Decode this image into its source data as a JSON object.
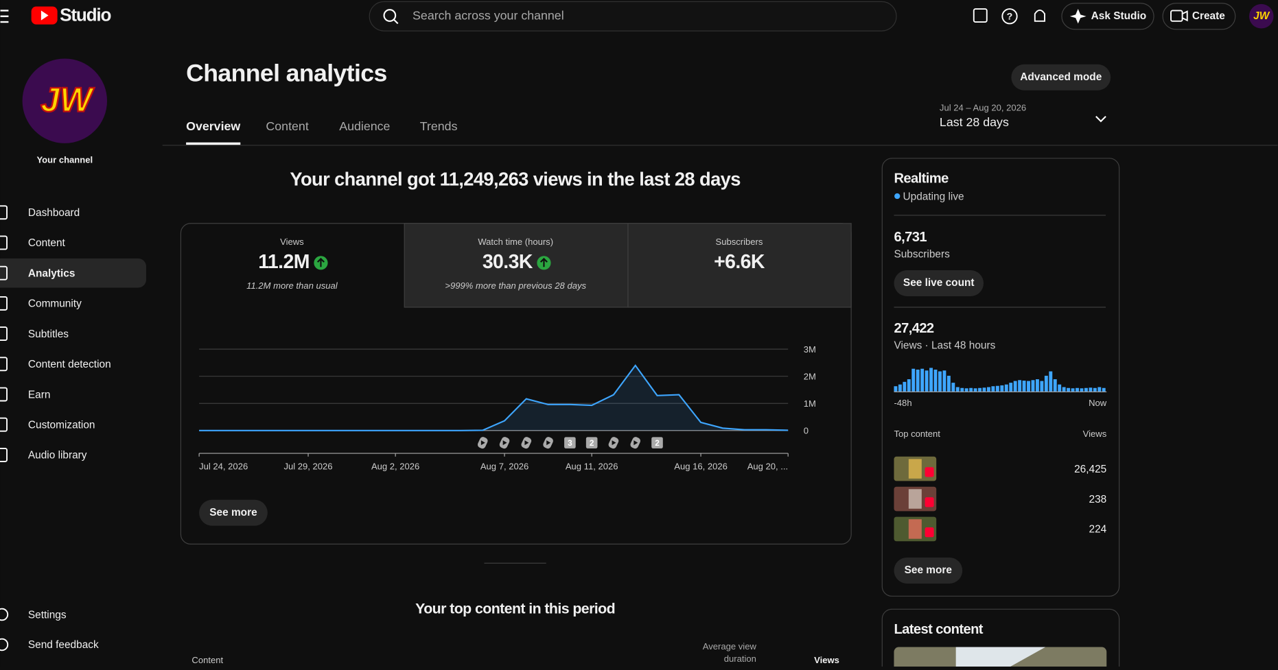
{
  "header": {
    "logo_text": "Studio",
    "search_placeholder": "Search across your channel",
    "ask_studio": "Ask Studio",
    "create": "Create",
    "avatar": "JW"
  },
  "sidebar": {
    "avatar": "JW",
    "channel_label": "Your channel",
    "nav": [
      "Dashboard",
      "Content",
      "Analytics",
      "Community",
      "Subtitles",
      "Content detection",
      "Earn",
      "Customization",
      "Audio library"
    ],
    "active": 2,
    "bottom": [
      "Settings",
      "Send feedback"
    ]
  },
  "main": {
    "title": "Channel analytics",
    "advanced_mode": "Advanced mode",
    "tabs": [
      "Overview",
      "Content",
      "Audience",
      "Trends"
    ],
    "active_tab": 0,
    "date_range": "Jul 24 – Aug 20, 2026",
    "period": "Last 28 days",
    "headline": "Your channel got 11,249,263 views in the last 28 days",
    "metrics": [
      {
        "label": "Views",
        "value": "11.2M",
        "note": "11.2M more than usual",
        "up": true
      },
      {
        "label": "Watch time (hours)",
        "value": "30.3K",
        "note": ">999% more than previous 28 days",
        "up": true
      },
      {
        "label": "Subscribers",
        "value": "+6.6K"
      }
    ],
    "see_more": "See more",
    "top_content_title": "Your top content in this period",
    "table_headers": [
      "Content",
      "Average view duration",
      "Views"
    ]
  },
  "chart_data": [
    {
      "type": "line",
      "color": "#3ea6ff",
      "categories": [
        "Jul 24, 2026",
        null,
        null,
        null,
        null,
        "Jul 29, 2026",
        null,
        null,
        null,
        "Aug 2, 2026",
        null,
        null,
        null,
        null,
        "Aug 7, 2026",
        null,
        null,
        null,
        "Aug 11, 2026",
        null,
        null,
        null,
        null,
        "Aug 16, 2026",
        null,
        null,
        null,
        "Aug 20, ..."
      ],
      "values": [
        0,
        0,
        0,
        0,
        0,
        0,
        0,
        0,
        0,
        0,
        0,
        0,
        0,
        10000,
        360000,
        1170000,
        960000,
        960000,
        930000,
        1320000,
        2400000,
        1290000,
        1320000,
        300000,
        90000,
        30000,
        30000,
        10000
      ],
      "ylim": [
        0,
        3000000
      ],
      "yticks": [
        0,
        {
          "value": 1000000,
          "label": "1M"
        },
        {
          "value": 2000000,
          "label": "2M"
        },
        {
          "value": 3000000,
          "label": "3M"
        }
      ],
      "grid": true,
      "upload_markers": [
        {
          "day": 13
        },
        {
          "day": 14
        },
        {
          "day": 15
        },
        {
          "day": 16
        },
        {
          "day": 17,
          "count": 3
        },
        {
          "day": 18,
          "count": 2
        },
        {
          "day": 19
        },
        {
          "day": 20
        },
        {
          "day": 21,
          "count": 2
        }
      ]
    },
    {
      "type": "bar",
      "color": "#3ea6ff",
      "categories": [
        "-48h",
        null,
        null,
        null,
        null,
        null,
        null,
        null,
        null,
        null,
        null,
        null,
        null,
        null,
        null,
        null,
        null,
        null,
        null,
        null,
        null,
        null,
        null,
        null,
        null,
        null,
        null,
        null,
        null,
        null,
        null,
        null,
        null,
        null,
        null,
        null,
        null,
        null,
        null,
        null,
        null,
        null,
        null,
        null,
        null,
        null,
        null,
        "Now"
      ],
      "values": [
        300,
        400,
        550,
        700,
        1300,
        1250,
        1300,
        1200,
        1350,
        1250,
        1150,
        1200,
        900,
        500,
        250,
        200,
        180,
        200,
        180,
        200,
        220,
        250,
        300,
        320,
        350,
        400,
        500,
        600,
        650,
        620,
        600,
        650,
        700,
        600,
        900,
        1150,
        700,
        400,
        250,
        200,
        180,
        200,
        180,
        200,
        220,
        200,
        250,
        200
      ]
    }
  ],
  "realtime": {
    "title": "Realtime",
    "status": "Updating live",
    "subscribers": "6,731",
    "subscribers_label": "Subscribers",
    "see_live_count": "See live count",
    "views": "27,422",
    "views_label": "Views · Last 48 hours",
    "top_content": "Top content",
    "views_header": "Views",
    "rows": [
      "26,425",
      "238",
      "224"
    ],
    "see_more": "See more"
  },
  "latest": {
    "title": "Latest content"
  }
}
